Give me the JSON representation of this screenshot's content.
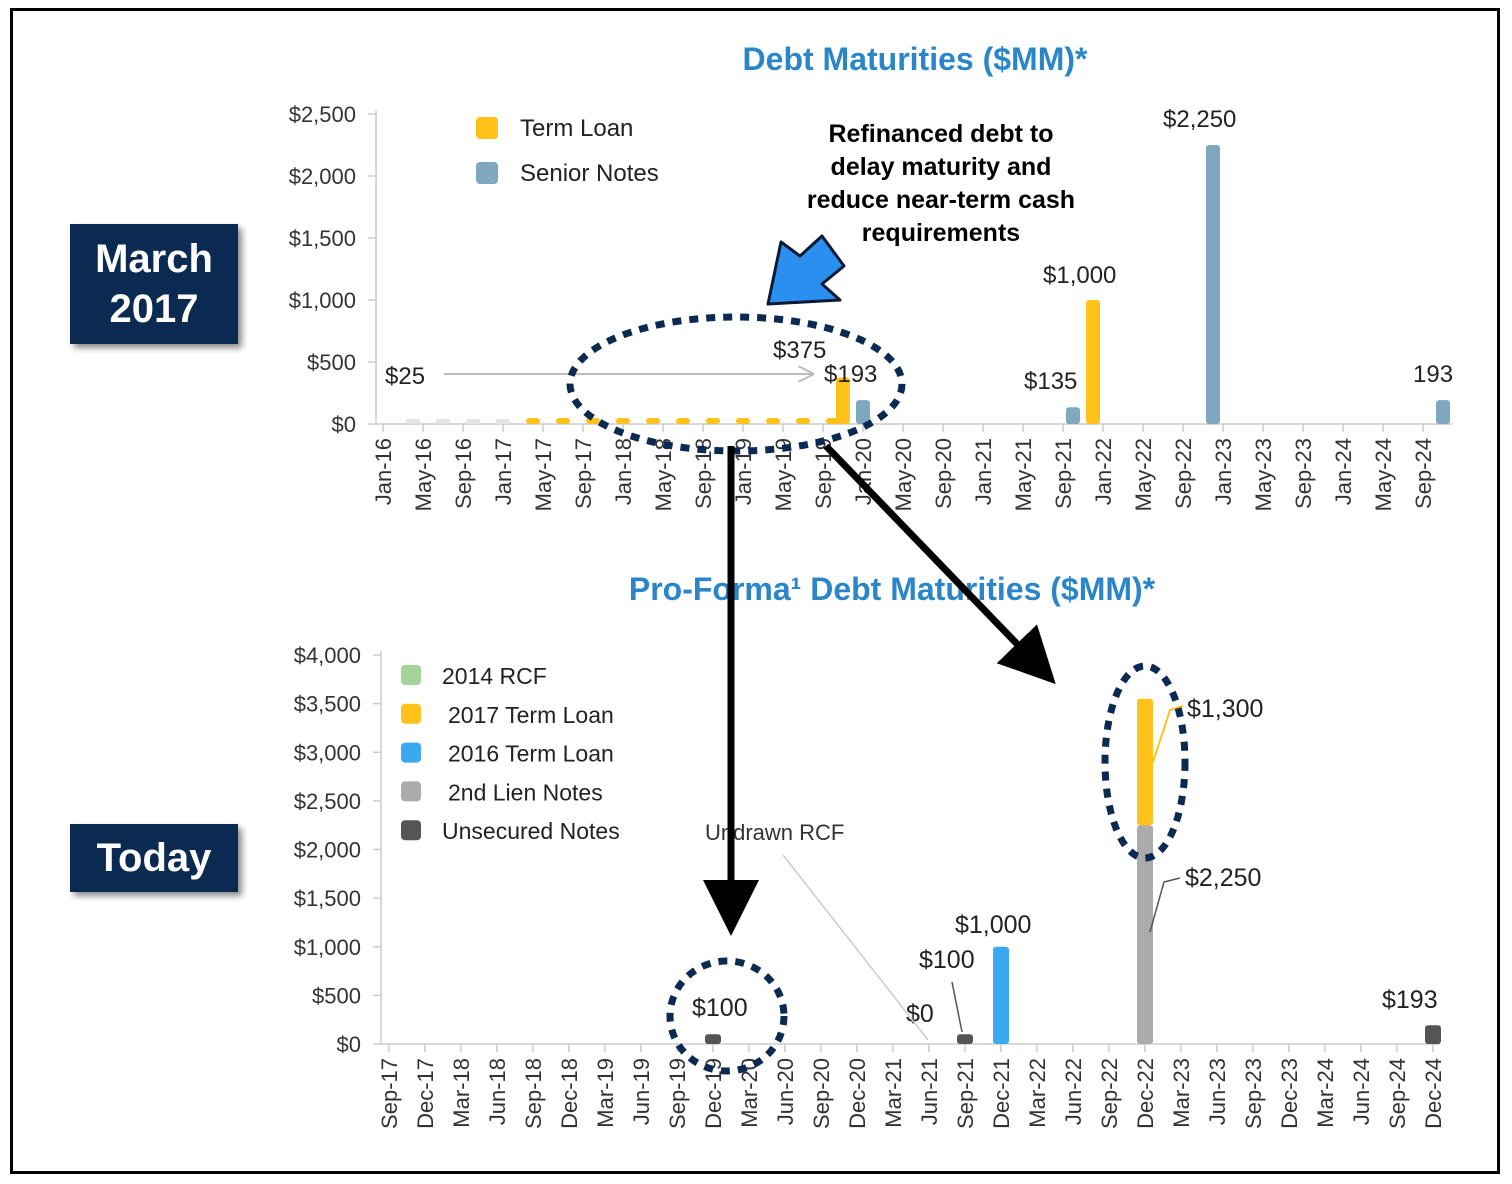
{
  "labels": {
    "top_period": "March 2017",
    "bottom_period": "Today",
    "annotation": [
      "Refinanced debt to",
      "delay maturity and",
      "reduce near-term cash",
      "requirements"
    ]
  },
  "colors": {
    "accent_title": "#2a86c8",
    "term_loan": "#ffc21a",
    "senior_notes": "#7fa8c0",
    "rcf_2014": "#a4d49a",
    "term_loan_2016": "#3aaaf0",
    "second_lien": "#ababab",
    "unsecured": "#555555",
    "badge": "#0b2a52",
    "highlight": "#0b2a52",
    "arrow_blue": "#2a8fef"
  },
  "chart_data": [
    {
      "type": "bar",
      "title": "Debt Maturities ($MM)*",
      "ylim": [
        0,
        2500
      ],
      "y_ticks": [
        "$0",
        "$500",
        "$1,000",
        "$1,500",
        "$2,000",
        "$2,500"
      ],
      "x_tick_labels": [
        "Jan-16",
        "May-16",
        "Sep-16",
        "Jan-17",
        "May-17",
        "Sep-17",
        "Jan-18",
        "May-18",
        "Sep-18",
        "Jan-19",
        "May-19",
        "Sep-19",
        "Jan-20",
        "May-20",
        "Sep-20",
        "Jan-21",
        "May-21",
        "Sep-21",
        "Jan-22",
        "May-22",
        "Sep-22",
        "Jan-23",
        "May-23",
        "Sep-23",
        "Jan-24",
        "May-24",
        "Sep-24"
      ],
      "legend": [
        "Term Loan",
        "Senior Notes"
      ],
      "legend_position": "top-left",
      "series": [
        {
          "name": "Term Loan",
          "points": [
            {
              "x": "Apr-16",
              "y": 6
            },
            {
              "x": "Jul-16",
              "y": 6
            },
            {
              "x": "Oct-16",
              "y": 6
            },
            {
              "x": "Jan-17",
              "y": 6
            },
            {
              "x": "Apr-17",
              "y": 6
            },
            {
              "x": "Jul-17",
              "y": 6
            },
            {
              "x": "Oct-17",
              "y": 6
            },
            {
              "x": "Jan-18",
              "y": 6
            },
            {
              "x": "Apr-18",
              "y": 6
            },
            {
              "x": "Jul-18",
              "y": 6
            },
            {
              "x": "Oct-18",
              "y": 6
            },
            {
              "x": "Jan-19",
              "y": 6
            },
            {
              "x": "Apr-19",
              "y": 6
            },
            {
              "x": "Jul-19",
              "y": 6
            },
            {
              "x": "Oct-19",
              "y": 6
            },
            {
              "x": "Nov-19",
              "y": 375
            },
            {
              "x": "Dec-21",
              "y": 1000
            }
          ]
        },
        {
          "name": "Senior Notes",
          "points": [
            {
              "x": "Jan-20",
              "y": 193
            },
            {
              "x": "Oct-21",
              "y": 135
            },
            {
              "x": "Dec-22",
              "y": 2250
            },
            {
              "x": "Nov-24",
              "y": 193
            }
          ]
        }
      ],
      "data_labels": [
        "$25",
        "$375",
        "$193",
        "$135",
        "$1,000",
        "$2,250",
        "193"
      ],
      "annotations": [
        "Refinanced debt to delay maturity and reduce near-term cash requirements"
      ]
    },
    {
      "type": "bar",
      "title": "Pro-Forma¹ Debt Maturities ($MM)*",
      "ylim": [
        0,
        4000
      ],
      "y_ticks": [
        "$0",
        "$500",
        "$1,000",
        "$1,500",
        "$2,000",
        "$2,500",
        "$3,000",
        "$3,500",
        "$4,000"
      ],
      "x_tick_labels": [
        "Sep-17",
        "Dec-17",
        "Mar-18",
        "Jun-18",
        "Sep-18",
        "Dec-18",
        "Mar-19",
        "Jun-19",
        "Sep-19",
        "Dec-19",
        "Mar-20",
        "Jun-20",
        "Sep-20",
        "Dec-20",
        "Mar-21",
        "Jun-21",
        "Sep-21",
        "Dec-21",
        "Mar-22",
        "Jun-22",
        "Sep-22",
        "Dec-22",
        "Mar-23",
        "Jun-23",
        "Sep-23",
        "Dec-23",
        "Mar-24",
        "Jun-24",
        "Sep-24",
        "Dec-24"
      ],
      "legend": [
        "2014 RCF",
        "2017 Term Loan",
        "2016 Term Loan",
        "2nd Lien Notes",
        "Unsecured Notes"
      ],
      "legend_position": "top-left",
      "series": [
        {
          "name": "2014 RCF",
          "points": [
            {
              "x": "Jun-21",
              "y": 0
            }
          ]
        },
        {
          "name": "2017 Term Loan",
          "points": [
            {
              "x": "Dec-22",
              "y": 1300
            }
          ]
        },
        {
          "name": "2016 Term Loan",
          "points": [
            {
              "x": "Dec-21",
              "y": 1000
            }
          ]
        },
        {
          "name": "2nd Lien Notes",
          "points": [
            {
              "x": "Dec-22",
              "y": 2250
            }
          ]
        },
        {
          "name": "Unsecured Notes",
          "points": [
            {
              "x": "Dec-19",
              "y": 100
            },
            {
              "x": "Sep-21",
              "y": 100
            },
            {
              "x": "Dec-24",
              "y": 193
            }
          ]
        }
      ],
      "data_labels": [
        "$100",
        "$0",
        "$100",
        "$1,000",
        "$1,300",
        "$2,250",
        "$193"
      ],
      "annotations": [
        "Undrawn RCF"
      ]
    }
  ]
}
